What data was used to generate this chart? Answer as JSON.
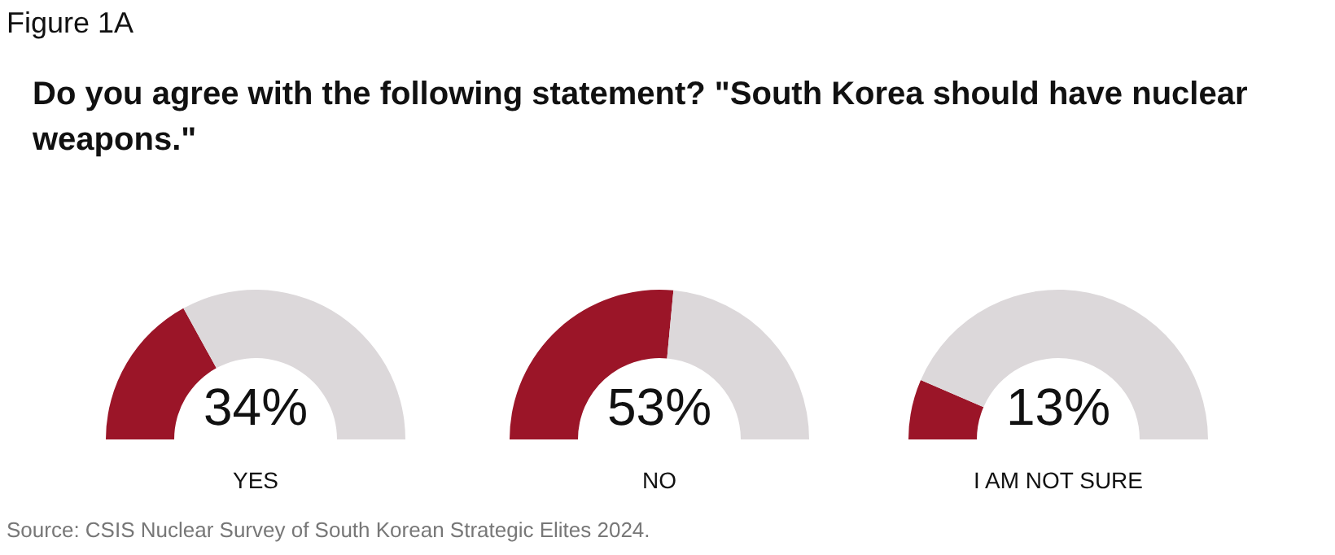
{
  "chart_data": [
    {
      "type": "other",
      "title": "Figure 1A",
      "subtitle": "Do you agree with the following statement? \"South Korea should have nuclear weapons.\"",
      "annotations": [
        "Source: CSIS Nuclear Survey of South Korean Strategic Elites 2024."
      ]
    },
    {
      "type": "donut",
      "title": "34%",
      "xlabel": "YES",
      "categories": [
        null,
        null
      ],
      "values": [
        34,
        66
      ],
      "colors": [
        "#9b1528",
        "#dcd8da"
      ]
    },
    {
      "type": "donut",
      "title": "53%",
      "xlabel": "NO",
      "categories": [
        null,
        null
      ],
      "values": [
        53,
        47
      ],
      "colors": [
        "#9b1528",
        "#dcd8da"
      ]
    },
    {
      "type": "donut",
      "title": "13%",
      "xlabel": "I AM NOT SURE",
      "categories": [
        null,
        null
      ],
      "values": [
        13,
        87
      ],
      "colors": [
        "#9b1528",
        "#dcd8da"
      ]
    }
  ]
}
